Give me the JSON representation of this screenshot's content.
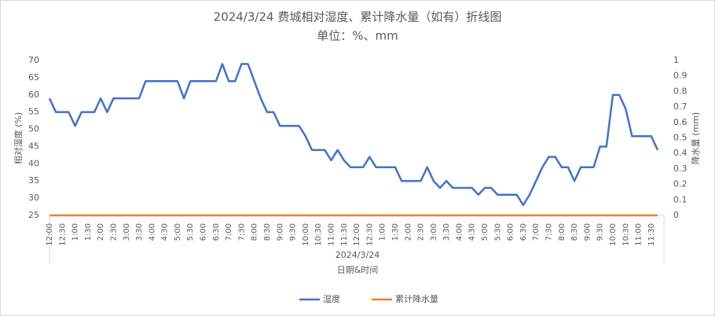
{
  "chart_data": {
    "type": "line",
    "title": "2024/3/24 费城相对湿度、累计降水量（如有）折线图",
    "subtitle": "单位：%、mm",
    "x_axis_label": "日期&时间",
    "x_group_label": "2024/3/24",
    "y_axis_label": "相对湿度 (%)",
    "y2_axis_label": "降水量 (mm)",
    "categories": [
      "12:00",
      null,
      "12:30",
      null,
      "1:00",
      null,
      "1:30",
      null,
      "2:00",
      null,
      "2:30",
      null,
      "3:00",
      null,
      "3:30",
      null,
      "4:00",
      null,
      "4:30",
      null,
      "5:00",
      null,
      "5:30",
      null,
      "6:00",
      null,
      "6:30",
      null,
      "7:00",
      null,
      "7:30",
      null,
      "8:00",
      null,
      "8:30",
      null,
      "9:00",
      null,
      "9:30",
      null,
      "10:00",
      null,
      "10:30",
      null,
      "11:00",
      null,
      "11:30",
      null,
      "12:00",
      null,
      "12:30",
      null,
      "1:00",
      null,
      "1:30",
      null,
      "2:00",
      null,
      "2:30",
      null,
      "3:00",
      null,
      "3:30",
      null,
      "4:00",
      null,
      "4:30",
      null,
      "5:00",
      null,
      "5:30",
      null,
      "6:00",
      null,
      "6:30",
      null,
      "7:00",
      null,
      "7:30",
      null,
      "8:00",
      null,
      "8:30",
      null,
      "9:00",
      null,
      "9:30",
      null,
      "10:00",
      null,
      "10:30",
      null,
      "11:00",
      null,
      "11:30",
      null
    ],
    "series": [
      {
        "name": "湿度",
        "color": "#4472c4",
        "axis": "y",
        "values": [
          59,
          55,
          55,
          55,
          51,
          55,
          55,
          55,
          59,
          55,
          59,
          59,
          59,
          59,
          59,
          64,
          64,
          64,
          64,
          64,
          64,
          59,
          64,
          64,
          64,
          64,
          64,
          69,
          64,
          64,
          69,
          69,
          64,
          59,
          55,
          55,
          51,
          51,
          51,
          51,
          48,
          44,
          44,
          44,
          41,
          44,
          41,
          39,
          39,
          39,
          42,
          39,
          39,
          39,
          39,
          35,
          35,
          35,
          35,
          39,
          35,
          33,
          35,
          33,
          33,
          33,
          33,
          31,
          33,
          33,
          31,
          31,
          31,
          31,
          28,
          31,
          35,
          39,
          42,
          42,
          39,
          39,
          35,
          39,
          39,
          39,
          45,
          45,
          60,
          60,
          56,
          48,
          48,
          48,
          48,
          44
        ]
      },
      {
        "name": "累计降水量",
        "color": "#ed7d31",
        "axis": "y2",
        "values": [
          0,
          0,
          0,
          0,
          0,
          0,
          0,
          0,
          0,
          0,
          0,
          0,
          0,
          0,
          0,
          0,
          0,
          0,
          0,
          0,
          0,
          0,
          0,
          0,
          0,
          0,
          0,
          0,
          0,
          0,
          0,
          0,
          0,
          0,
          0,
          0,
          0,
          0,
          0,
          0,
          0,
          0,
          0,
          0,
          0,
          0,
          0,
          0,
          0,
          0,
          0,
          0,
          0,
          0,
          0,
          0,
          0,
          0,
          0,
          0,
          0,
          0,
          0,
          0,
          0,
          0,
          0,
          0,
          0,
          0,
          0,
          0,
          0,
          0,
          0,
          0,
          0,
          0,
          0,
          0,
          0,
          0,
          0,
          0,
          0,
          0,
          0,
          0,
          0,
          0,
          0,
          0,
          0,
          0,
          0,
          0
        ]
      }
    ],
    "ylim": [
      25,
      70
    ],
    "yticks": [
      25,
      30,
      35,
      40,
      45,
      50,
      55,
      60,
      65,
      70
    ],
    "y2lim": [
      0,
      1
    ],
    "y2ticks": [
      0,
      0.1,
      0.2,
      0.3,
      0.4,
      0.5,
      0.6,
      0.7,
      0.8,
      0.9,
      1
    ],
    "grid": false,
    "legend": "bottom"
  }
}
